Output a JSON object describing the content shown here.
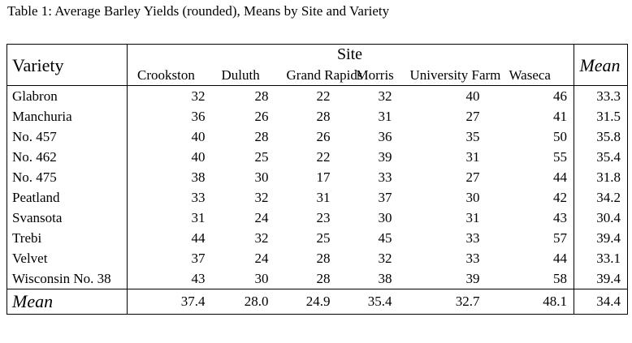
{
  "caption": "Table 1: Average Barley Yields (rounded), Means by Site and Variety",
  "header": {
    "variety_label": "Variety",
    "site_group_label": "Site",
    "mean_label": "Mean",
    "sites": [
      "Crookston",
      "Duluth",
      "Grand Rapids",
      "Morris",
      "University Farm",
      "Waseca"
    ]
  },
  "rows": [
    {
      "variety": "Glabron",
      "values": [
        "32",
        "28",
        "22",
        "32",
        "40",
        "46"
      ],
      "mean": "33.3"
    },
    {
      "variety": "Manchuria",
      "values": [
        "36",
        "26",
        "28",
        "31",
        "27",
        "41"
      ],
      "mean": "31.5"
    },
    {
      "variety": "No. 457",
      "values": [
        "40",
        "28",
        "26",
        "36",
        "35",
        "50"
      ],
      "mean": "35.8"
    },
    {
      "variety": "No. 462",
      "values": [
        "40",
        "25",
        "22",
        "39",
        "31",
        "55"
      ],
      "mean": "35.4"
    },
    {
      "variety": "No. 475",
      "values": [
        "38",
        "30",
        "17",
        "33",
        "27",
        "44"
      ],
      "mean": "31.8"
    },
    {
      "variety": "Peatland",
      "values": [
        "33",
        "32",
        "31",
        "37",
        "30",
        "42"
      ],
      "mean": "34.2"
    },
    {
      "variety": "Svansota",
      "values": [
        "31",
        "24",
        "23",
        "30",
        "31",
        "43"
      ],
      "mean": "30.4"
    },
    {
      "variety": "Trebi",
      "values": [
        "44",
        "32",
        "25",
        "45",
        "33",
        "57"
      ],
      "mean": "39.4"
    },
    {
      "variety": "Velvet",
      "values": [
        "37",
        "24",
        "28",
        "32",
        "33",
        "44"
      ],
      "mean": "33.1"
    },
    {
      "variety": "Wisconsin No. 38",
      "values": [
        "43",
        "30",
        "28",
        "38",
        "39",
        "58"
      ],
      "mean": "39.4"
    }
  ],
  "footer": {
    "label": "Mean",
    "values": [
      "37.4",
      "28.0",
      "24.9",
      "35.4",
      "32.7",
      "48.1"
    ],
    "overall_mean": "34.4"
  }
}
